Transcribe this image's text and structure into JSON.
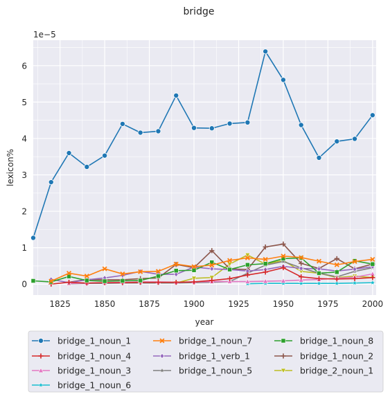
{
  "chart_data": {
    "type": "line",
    "title": "bridge",
    "xlabel": "year",
    "ylabel": "lexicon%",
    "y_scale_label": "1e−5",
    "xlim": [
      1810,
      2002
    ],
    "ylim": [
      -0.3,
      6.7
    ],
    "x_ticks": [
      1825,
      1850,
      1875,
      1900,
      1925,
      1950,
      1975,
      2000
    ],
    "y_ticks": [
      0,
      1,
      2,
      3,
      4,
      5,
      6
    ],
    "legend_position": "below",
    "series": [
      {
        "name": "bridge_1_noun_1",
        "color": "#1f77b4",
        "marker": "circle",
        "x": [
          1810,
          1820,
          1830,
          1840,
          1850,
          1860,
          1870,
          1880,
          1890,
          1900,
          1910,
          1920,
          1930,
          1940,
          1950,
          1960,
          1970,
          1980,
          1990,
          2000
        ],
        "y": [
          1.27,
          2.8,
          3.6,
          3.22,
          3.53,
          4.4,
          4.16,
          4.2,
          5.18,
          4.29,
          4.28,
          4.41,
          4.44,
          6.39,
          5.61,
          4.37,
          3.47,
          3.92,
          3.99,
          4.64
        ]
      },
      {
        "name": "bridge_1_noun_7",
        "color": "#ff7f0e",
        "marker": "x",
        "x": [
          1820,
          1830,
          1840,
          1850,
          1860,
          1870,
          1880,
          1890,
          1900,
          1910,
          1920,
          1930,
          1940,
          1950,
          1960,
          1970,
          1980,
          1990,
          2000
        ],
        "y": [
          0.08,
          0.3,
          0.22,
          0.42,
          0.28,
          0.34,
          0.35,
          0.55,
          0.48,
          0.52,
          0.65,
          0.72,
          0.68,
          0.77,
          0.73,
          0.63,
          0.53,
          0.62,
          0.68
        ]
      },
      {
        "name": "bridge_1_noun_8",
        "color": "#2ca02c",
        "marker": "square",
        "x": [
          1810,
          1820,
          1830,
          1840,
          1850,
          1860,
          1870,
          1880,
          1890,
          1900,
          1910,
          1920,
          1930,
          1940,
          1950,
          1960,
          1970,
          1980,
          1990,
          2000
        ],
        "y": [
          0.09,
          0.06,
          0.21,
          0.1,
          0.08,
          0.09,
          0.1,
          0.22,
          0.37,
          0.38,
          0.6,
          0.4,
          0.53,
          0.56,
          0.7,
          0.72,
          0.3,
          0.33,
          0.64,
          0.55
        ]
      },
      {
        "name": "bridge_1_noun_4",
        "color": "#d62728",
        "marker": "plus",
        "x": [
          1820,
          1830,
          1840,
          1850,
          1860,
          1870,
          1880,
          1890,
          1900,
          1910,
          1920,
          1930,
          1940,
          1950,
          1960,
          1970,
          1980,
          1990,
          2000
        ],
        "y": [
          0.0,
          0.05,
          0.03,
          0.04,
          0.04,
          0.05,
          0.05,
          0.05,
          0.06,
          0.1,
          0.15,
          0.25,
          0.33,
          0.45,
          0.2,
          0.15,
          0.14,
          0.15,
          0.18
        ]
      },
      {
        "name": "bridge_1_verb_1",
        "color": "#9467bd",
        "marker": "diamond",
        "x": [
          1820,
          1830,
          1840,
          1850,
          1860,
          1870,
          1880,
          1890,
          1900,
          1910,
          1920,
          1930,
          1940,
          1950,
          1960,
          1970,
          1980,
          1990,
          2000
        ],
        "y": [
          0.13,
          0.04,
          0.12,
          0.17,
          0.24,
          0.35,
          0.27,
          0.27,
          0.47,
          0.42,
          0.4,
          0.36,
          0.4,
          0.49,
          0.43,
          0.42,
          0.36,
          0.41,
          0.48
        ]
      },
      {
        "name": "bridge_1_noun_2",
        "color": "#8c564b",
        "marker": "plus",
        "x": [
          1830,
          1840,
          1850,
          1860,
          1870,
          1880,
          1890,
          1900,
          1910,
          1920,
          1930,
          1940,
          1950,
          1960,
          1970,
          1980,
          1990,
          2000
        ],
        "y": [
          0.05,
          0.13,
          0.12,
          0.12,
          0.15,
          0.17,
          0.54,
          0.45,
          0.92,
          0.42,
          0.4,
          1.02,
          1.1,
          0.57,
          0.43,
          0.7,
          0.42,
          0.55
        ]
      },
      {
        "name": "bridge_1_noun_3",
        "color": "#e377c2",
        "marker": "triangle-up",
        "x": [
          1830,
          1840,
          1850,
          1860,
          1870,
          1880,
          1890,
          1900,
          1910,
          1920,
          1930,
          1940,
          1950,
          1960,
          1970,
          1980,
          1990,
          2000
        ],
        "y": [
          0.02,
          0.03,
          0.04,
          0.05,
          0.06,
          0.06,
          0.05,
          0.06,
          0.07,
          0.07,
          0.07,
          0.08,
          0.09,
          0.11,
          0.13,
          0.16,
          0.19,
          0.28
        ]
      },
      {
        "name": "bridge_1_noun_5",
        "color": "#7f7f7f",
        "marker": "star",
        "x": [
          1830,
          1840,
          1850,
          1860,
          1870,
          1880,
          1890,
          1900,
          1910,
          1920,
          1930,
          1940,
          1950,
          1960,
          1970,
          1980,
          1990,
          2000
        ],
        "y": [
          0.01,
          0.02,
          0.02,
          0.03,
          0.03,
          0.03,
          0.03,
          0.04,
          0.05,
          0.07,
          0.3,
          0.52,
          0.62,
          0.45,
          0.3,
          0.2,
          0.35,
          0.45
        ]
      },
      {
        "name": "bridge_2_noun_1",
        "color": "#bcbd22",
        "marker": "triangle-down",
        "x": [
          1890,
          1900,
          1910,
          1920,
          1930,
          1940,
          1950,
          1960,
          1970,
          1980,
          1990,
          2000
        ],
        "y": [
          0.03,
          0.16,
          0.18,
          0.55,
          0.8,
          0.55,
          0.65,
          0.35,
          0.3,
          0.18,
          0.22,
          0.18
        ]
      },
      {
        "name": "bridge_1_noun_6",
        "color": "#17becf",
        "marker": "star",
        "x": [
          1930,
          1940,
          1950,
          1960,
          1970,
          1980,
          1990,
          2000
        ],
        "y": [
          0.01,
          0.02,
          0.02,
          0.02,
          0.02,
          0.02,
          0.03,
          0.04
        ]
      }
    ]
  }
}
